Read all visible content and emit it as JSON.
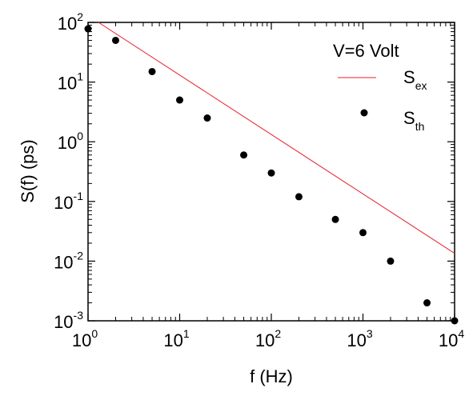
{
  "chart_data": {
    "type": "scatter",
    "title": "",
    "xlabel": "f (Hz)",
    "ylabel": "S(f) (ps)",
    "xscale": "log",
    "yscale": "log",
    "xlim": [
      1,
      10000
    ],
    "ylim": [
      0.001,
      100
    ],
    "grid": false,
    "legend_position": "top-right",
    "legend_title": "V=6 Volt",
    "x_ticks": [
      {
        "base": "10",
        "exp": "0"
      },
      {
        "base": "10",
        "exp": "1"
      },
      {
        "base": "10",
        "exp": "2"
      },
      {
        "base": "10",
        "exp": "3"
      },
      {
        "base": "10",
        "exp": "4"
      }
    ],
    "y_ticks": [
      {
        "base": "10",
        "exp": "-3"
      },
      {
        "base": "10",
        "exp": "-2"
      },
      {
        "base": "10",
        "exp": "-1"
      },
      {
        "base": "10",
        "exp": "0"
      },
      {
        "base": "10",
        "exp": "1"
      },
      {
        "base": "10",
        "exp": "2"
      }
    ],
    "series": [
      {
        "name_main": "S",
        "name_sub": "ex",
        "kind": "line",
        "color": "#e8222a",
        "x": [
          1.3,
          10000
        ],
        "y": [
          100,
          0.0135
        ]
      },
      {
        "name_main": "S",
        "name_sub": "th",
        "kind": "scatter",
        "color": "#000000",
        "x": [
          1,
          2,
          5,
          10,
          20,
          50,
          100,
          200,
          500,
          1000,
          2000,
          5000,
          10000
        ],
        "y": [
          78,
          50,
          15,
          5,
          2.5,
          0.6,
          0.3,
          0.12,
          0.05,
          0.03,
          0.01,
          0.002,
          0.001
        ]
      }
    ]
  }
}
